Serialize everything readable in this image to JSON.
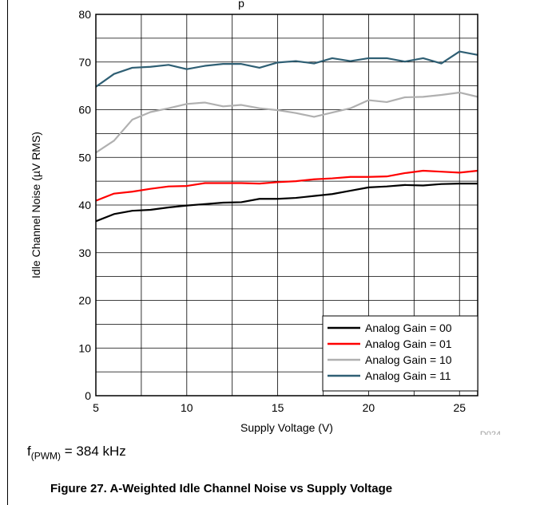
{
  "chart_data": {
    "type": "line",
    "title_fragment": "p",
    "xlabel": "Supply Voltage (V)",
    "ylabel": "Idle Channel Noise (µV RMS)",
    "xlim": [
      5,
      26
    ],
    "ylim": [
      0,
      80
    ],
    "xticks": [
      5,
      10,
      15,
      20,
      25
    ],
    "yticks": [
      0,
      10,
      20,
      30,
      40,
      50,
      60,
      70,
      80
    ],
    "grid": true,
    "legend_position": "bottom-right",
    "source_id": "D024",
    "x": [
      5,
      6,
      7,
      8,
      9,
      10,
      11,
      12,
      13,
      14,
      15,
      16,
      17,
      18,
      19,
      20,
      21,
      22,
      23,
      24,
      25,
      26
    ],
    "series": [
      {
        "name": "Analog Gain = 00",
        "color": "#000000",
        "values": [
          36.6,
          38.1,
          38.8,
          39.0,
          39.5,
          39.9,
          40.2,
          40.5,
          40.6,
          41.3,
          41.3,
          41.5,
          41.9,
          42.3,
          43.0,
          43.7,
          43.9,
          44.2,
          44.1,
          44.4,
          44.5,
          44.5
        ]
      },
      {
        "name": "Analog Gain = 01",
        "color": "#ff0000",
        "values": [
          40.9,
          42.4,
          42.8,
          43.4,
          43.9,
          44.0,
          44.6,
          44.6,
          44.6,
          44.5,
          44.8,
          45.0,
          45.4,
          45.6,
          45.9,
          45.9,
          46.0,
          46.7,
          47.2,
          47.0,
          46.8,
          47.2
        ]
      },
      {
        "name": "Analog Gain = 10",
        "color": "#b0b0b0",
        "values": [
          51.0,
          53.5,
          57.9,
          59.5,
          60.3,
          61.2,
          61.5,
          60.7,
          61.0,
          60.3,
          59.9,
          59.3,
          58.5,
          59.4,
          60.3,
          62.0,
          61.6,
          62.6,
          62.7,
          63.1,
          63.6,
          62.7
        ]
      },
      {
        "name": "Analog Gain = 11",
        "color": "#2f5f74",
        "values": [
          64.8,
          67.5,
          68.8,
          69.0,
          69.4,
          68.5,
          69.2,
          69.6,
          69.6,
          68.8,
          69.9,
          70.2,
          69.7,
          70.8,
          70.2,
          70.8,
          70.8,
          70.1,
          70.8,
          69.7,
          72.2,
          71.5
        ]
      }
    ]
  },
  "condition": {
    "prefix": "f",
    "subscript": "(PWM)",
    "value": " = 384 kHz"
  },
  "caption": "Figure 27. A-Weighted Idle Channel Noise vs Supply Voltage"
}
